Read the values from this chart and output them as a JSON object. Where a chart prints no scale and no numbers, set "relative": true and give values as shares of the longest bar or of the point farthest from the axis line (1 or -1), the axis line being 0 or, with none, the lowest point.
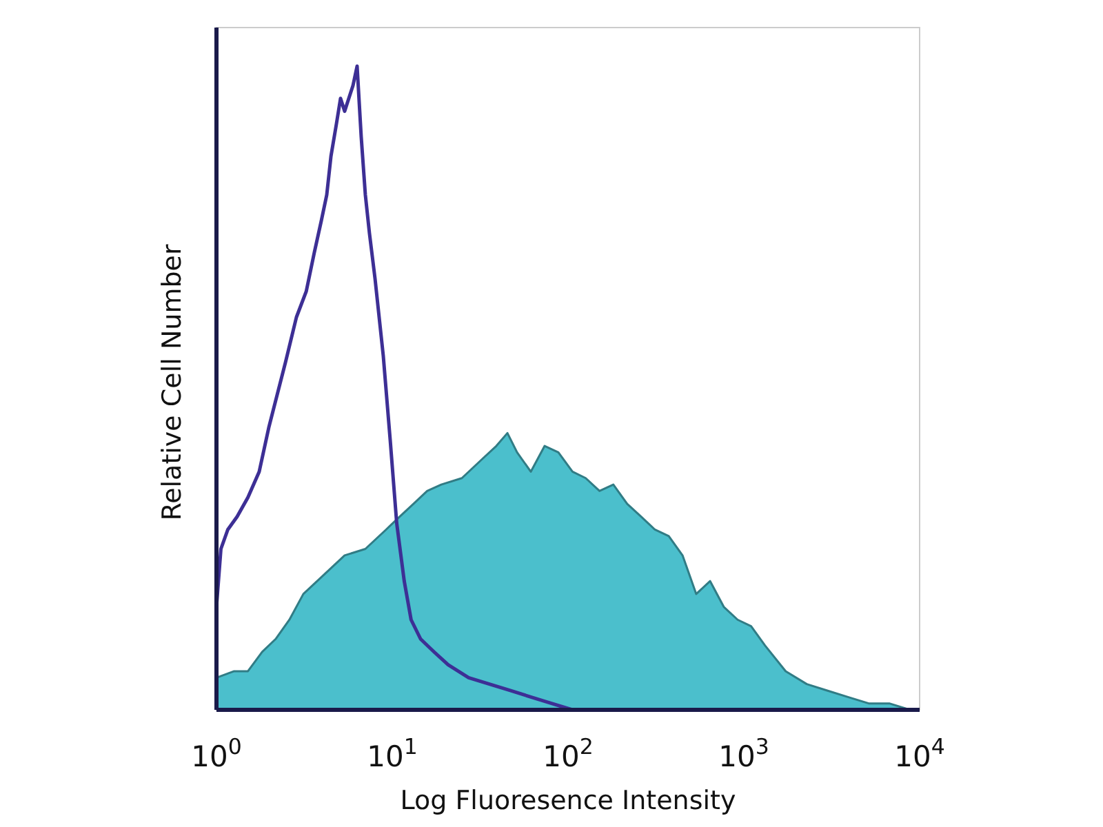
{
  "chart_data": {
    "type": "line",
    "xlabel": "Log Fluoresence Intensity",
    "ylabel": "Relative Cell Number",
    "relative": true,
    "log": "x",
    "xlim": [
      1,
      10000
    ],
    "xticks": [
      {
        "value": 1,
        "label": "10$^{0}$"
      },
      {
        "value": 10,
        "label": "10$^{1}$"
      },
      {
        "value": 100,
        "label": "10$^{2}$"
      },
      {
        "value": 1000,
        "label": "10$^{3}$"
      },
      {
        "value": 10000,
        "label": "10$^{4}$"
      }
    ],
    "tick_labels": "x",
    "grid": false,
    "series": [
      {
        "type": "area",
        "color": "#4bbfcc",
        "x": [
          1,
          1.26,
          1.51,
          1.82,
          2.17,
          2.6,
          3.12,
          4.09,
          5.36,
          7.03,
          9.22,
          11.0,
          13.2,
          15.8,
          19.0,
          24.9,
          32.6,
          39.1,
          45.2,
          51.3,
          61.4,
          73.6,
          88.1,
          106,
          126,
          151,
          181,
          217,
          261,
          312,
          374,
          448,
          536,
          643,
          769,
          922,
          1100,
          1320,
          1730,
          2280,
          2980,
          3910,
          5130,
          6720,
          8810
        ],
        "values": [
          0.05,
          0.06,
          0.06,
          0.09,
          0.11,
          0.14,
          0.18,
          0.21,
          0.24,
          0.25,
          0.28,
          0.3,
          0.32,
          0.34,
          0.35,
          0.36,
          0.39,
          0.41,
          0.43,
          0.4,
          0.37,
          0.41,
          0.4,
          0.37,
          0.36,
          0.34,
          0.35,
          0.32,
          0.3,
          0.28,
          0.27,
          0.24,
          0.18,
          0.2,
          0.16,
          0.14,
          0.13,
          0.1,
          0.06,
          0.04,
          0.03,
          0.02,
          0.01,
          0.01,
          0
        ]
      },
      {
        "color": "#3d2f95",
        "x": [
          1,
          1.06,
          1.16,
          1.31,
          1.51,
          1.75,
          1.99,
          2.17,
          2.47,
          2.85,
          3.24,
          3.6,
          3.95,
          4.24,
          4.48,
          4.81,
          5.08,
          5.36,
          5.66,
          5.98,
          6.31,
          6.66,
          7.03,
          7.42,
          7.98,
          8.89,
          9.73,
          10.6,
          11.7,
          12.8,
          14.5,
          17.3,
          20.8,
          27.2,
          35.7,
          46.9,
          61.4,
          80.5,
          106
        ],
        "values": [
          0.16,
          0.25,
          0.28,
          0.3,
          0.33,
          0.37,
          0.44,
          0.48,
          0.54,
          0.61,
          0.65,
          0.71,
          0.76,
          0.8,
          0.86,
          0.91,
          0.95,
          0.93,
          0.95,
          0.97,
          1.0,
          0.89,
          0.8,
          0.74,
          0.67,
          0.55,
          0.42,
          0.29,
          0.2,
          0.14,
          0.11,
          0.09,
          0.07,
          0.05,
          0.04,
          0.03,
          0.02,
          0.01,
          0
        ]
      }
    ]
  }
}
